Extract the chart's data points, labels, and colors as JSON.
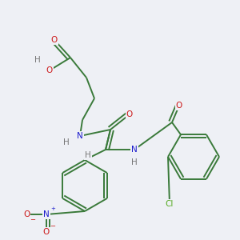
{
  "background_color": "#eef0f5",
  "atom_colors": {
    "C": "#3a7a3a",
    "N": "#1a1acc",
    "O": "#cc1a1a",
    "H": "#777777",
    "Cl": "#55aa22"
  },
  "bond_color": "#3a7a3a",
  "figsize": [
    3.0,
    3.0
  ],
  "dpi": 100,
  "lw": 1.4,
  "fs": 7.5
}
